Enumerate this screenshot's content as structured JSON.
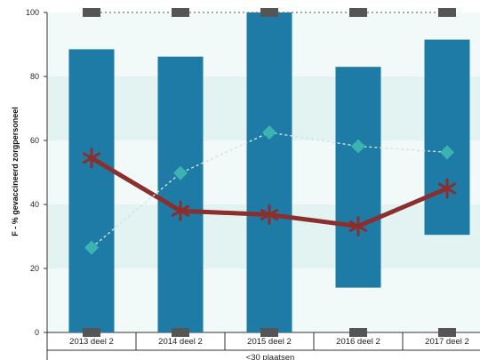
{
  "chart_data": {
    "type": "bar",
    "ylabel": "F - % gevaccineerd zorgpersoneel",
    "ylim": [
      0,
      100
    ],
    "yticks": [
      0,
      20,
      40,
      60,
      80,
      100
    ],
    "categories": [
      "2013 deel 2",
      "2014 deel 2",
      "2015 deel 2",
      "2016 deel 2",
      "2017 deel 2"
    ],
    "group_label": "<30 plaatsen",
    "ranges": [
      {
        "low": 0,
        "high": 88.5
      },
      {
        "low": 0,
        "high": 86.2
      },
      {
        "low": 0,
        "high": 100
      },
      {
        "low": 14,
        "high": 83
      },
      {
        "low": 30.5,
        "high": 91.5
      }
    ],
    "max_markers": [
      100,
      100,
      100,
      100,
      100
    ],
    "min_markers": [
      0,
      0,
      0,
      0,
      0
    ],
    "series": [
      {
        "name": "",
        "style": "star-line",
        "color": "#8B2E2E",
        "values": [
          54.5,
          38,
          36.8,
          33.2,
          45
        ]
      },
      {
        "name": "",
        "style": "diamond-dashed",
        "color": "#3BB3B0",
        "values": [
          26.5,
          49.8,
          62.5,
          58.2,
          56.3
        ]
      }
    ],
    "bar_color": "#1E7BA5",
    "marker_color": "#555555",
    "band_colors": [
      "#E3F3F2",
      "#F1F9F9"
    ]
  }
}
